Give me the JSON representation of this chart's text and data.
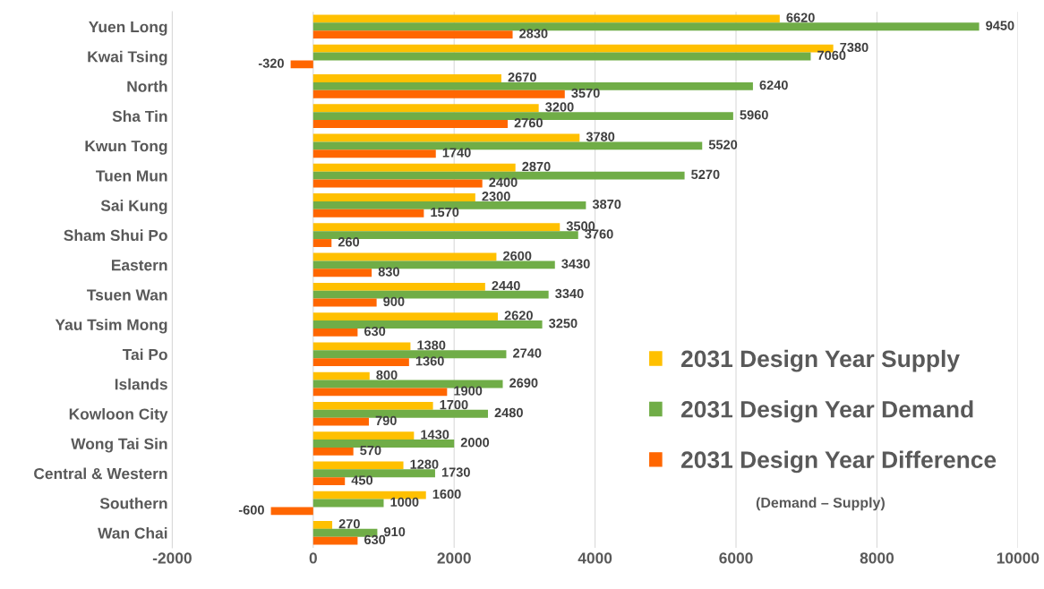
{
  "chart_data": {
    "type": "bar",
    "orientation": "horizontal",
    "categories": [
      "Yuen Long",
      "Kwai Tsing",
      "North",
      "Sha Tin",
      "Kwun Tong",
      "Tuen Mun",
      "Sai Kung",
      "Sham Shui Po",
      "Eastern",
      "Tsuen Wan",
      "Yau Tsim Mong",
      "Tai Po",
      "Islands",
      "Kowloon City",
      "Wong Tai Sin",
      "Central & Western",
      "Southern",
      "Wan Chai"
    ],
    "series": [
      {
        "name": "2031 Design Year Supply",
        "color": "#ffc000",
        "values": [
          6620,
          7380,
          2670,
          3200,
          3780,
          2870,
          2300,
          3500,
          2600,
          2440,
          2620,
          1380,
          800,
          1700,
          1430,
          1280,
          1600,
          270
        ]
      },
      {
        "name": "2031 Design Year Demand",
        "color": "#70ad47",
        "values": [
          9450,
          7060,
          6240,
          5960,
          5520,
          5270,
          3870,
          3760,
          3430,
          3340,
          3250,
          2740,
          2690,
          2480,
          2000,
          1730,
          1000,
          910
        ]
      },
      {
        "name": "2031 Design Year Difference",
        "color": "#ff6600",
        "values": [
          2830,
          -320,
          3570,
          2760,
          1740,
          2400,
          1570,
          260,
          830,
          900,
          630,
          1360,
          1900,
          790,
          570,
          450,
          -600,
          630
        ]
      }
    ],
    "xlim": [
      -2000,
      10000
    ],
    "xticks": [
      -2000,
      0,
      2000,
      4000,
      6000,
      8000,
      10000
    ],
    "grid": "x",
    "legend": "bottom right",
    "data_labels": true,
    "annotations": [
      "(Demand – Supply)"
    ]
  }
}
